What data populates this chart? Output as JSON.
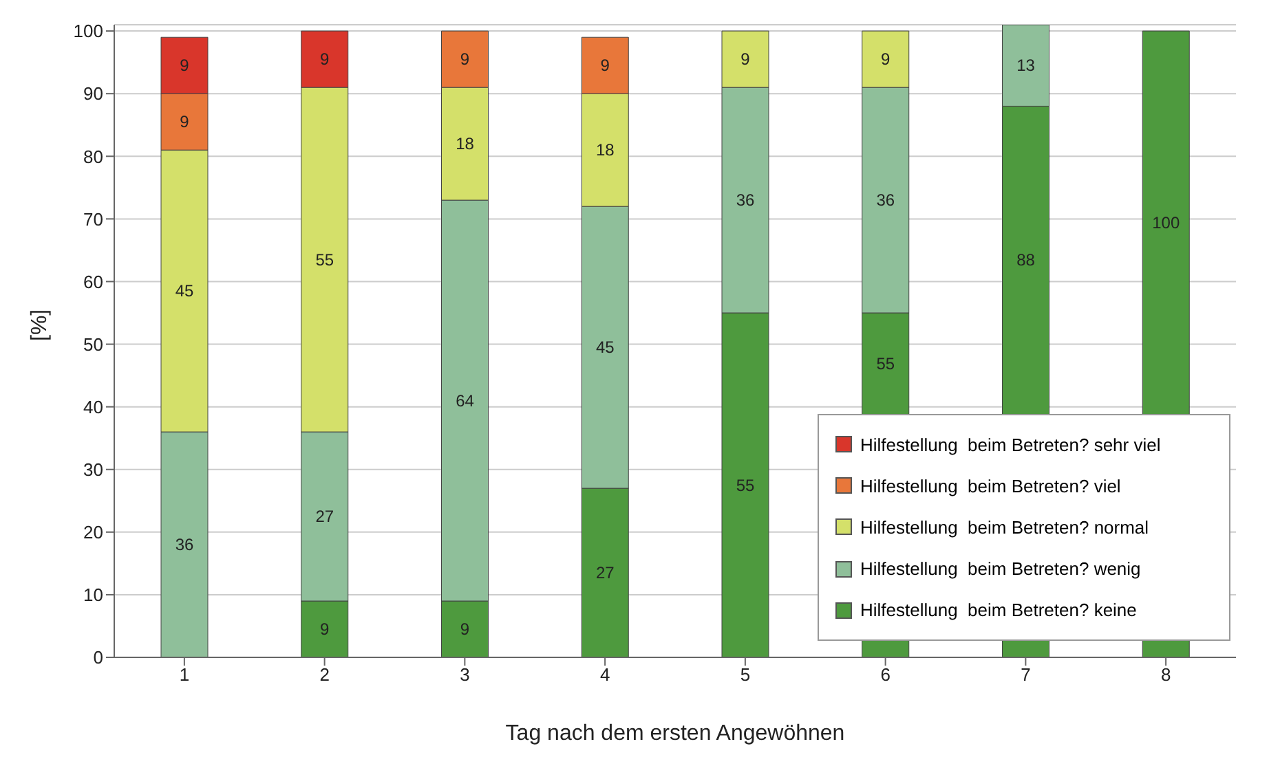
{
  "chart_data": {
    "type": "bar",
    "stacked": true,
    "xlabel": "Tag nach dem ersten Angewöhnen",
    "ylabel": "[%]",
    "categories": [
      "1",
      "2",
      "3",
      "4",
      "5",
      "6",
      "7",
      "8"
    ],
    "series": [
      {
        "name": "Hilfestellung  beim Betreten? keine",
        "color": "#4e9a3e",
        "values": [
          null,
          9,
          9,
          27,
          55,
          55,
          88,
          100
        ]
      },
      {
        "name": "Hilfestellung  beim Betreten? wenig",
        "color": "#8fbf9a",
        "values": [
          36,
          27,
          64,
          45,
          36,
          36,
          13,
          null
        ]
      },
      {
        "name": "Hilfestellung  beim Betreten? normal",
        "color": "#d4e06a",
        "values": [
          45,
          55,
          18,
          18,
          9,
          9,
          null,
          null
        ]
      },
      {
        "name": "Hilfestellung  beim Betreten? viel",
        "color": "#e8773a",
        "values": [
          9,
          null,
          9,
          9,
          null,
          null,
          null,
          null
        ]
      },
      {
        "name": "Hilfestellung  beim Betreten? sehr viel",
        "color": "#d9362b",
        "values": [
          9,
          9,
          null,
          null,
          null,
          null,
          null,
          null
        ]
      }
    ],
    "ylim": [
      0,
      101
    ],
    "yticks": [
      0,
      10,
      20,
      30,
      40,
      50,
      60,
      70,
      80,
      90,
      100
    ],
    "grid": "y",
    "legend": "bottom right",
    "data_labels": true
  }
}
